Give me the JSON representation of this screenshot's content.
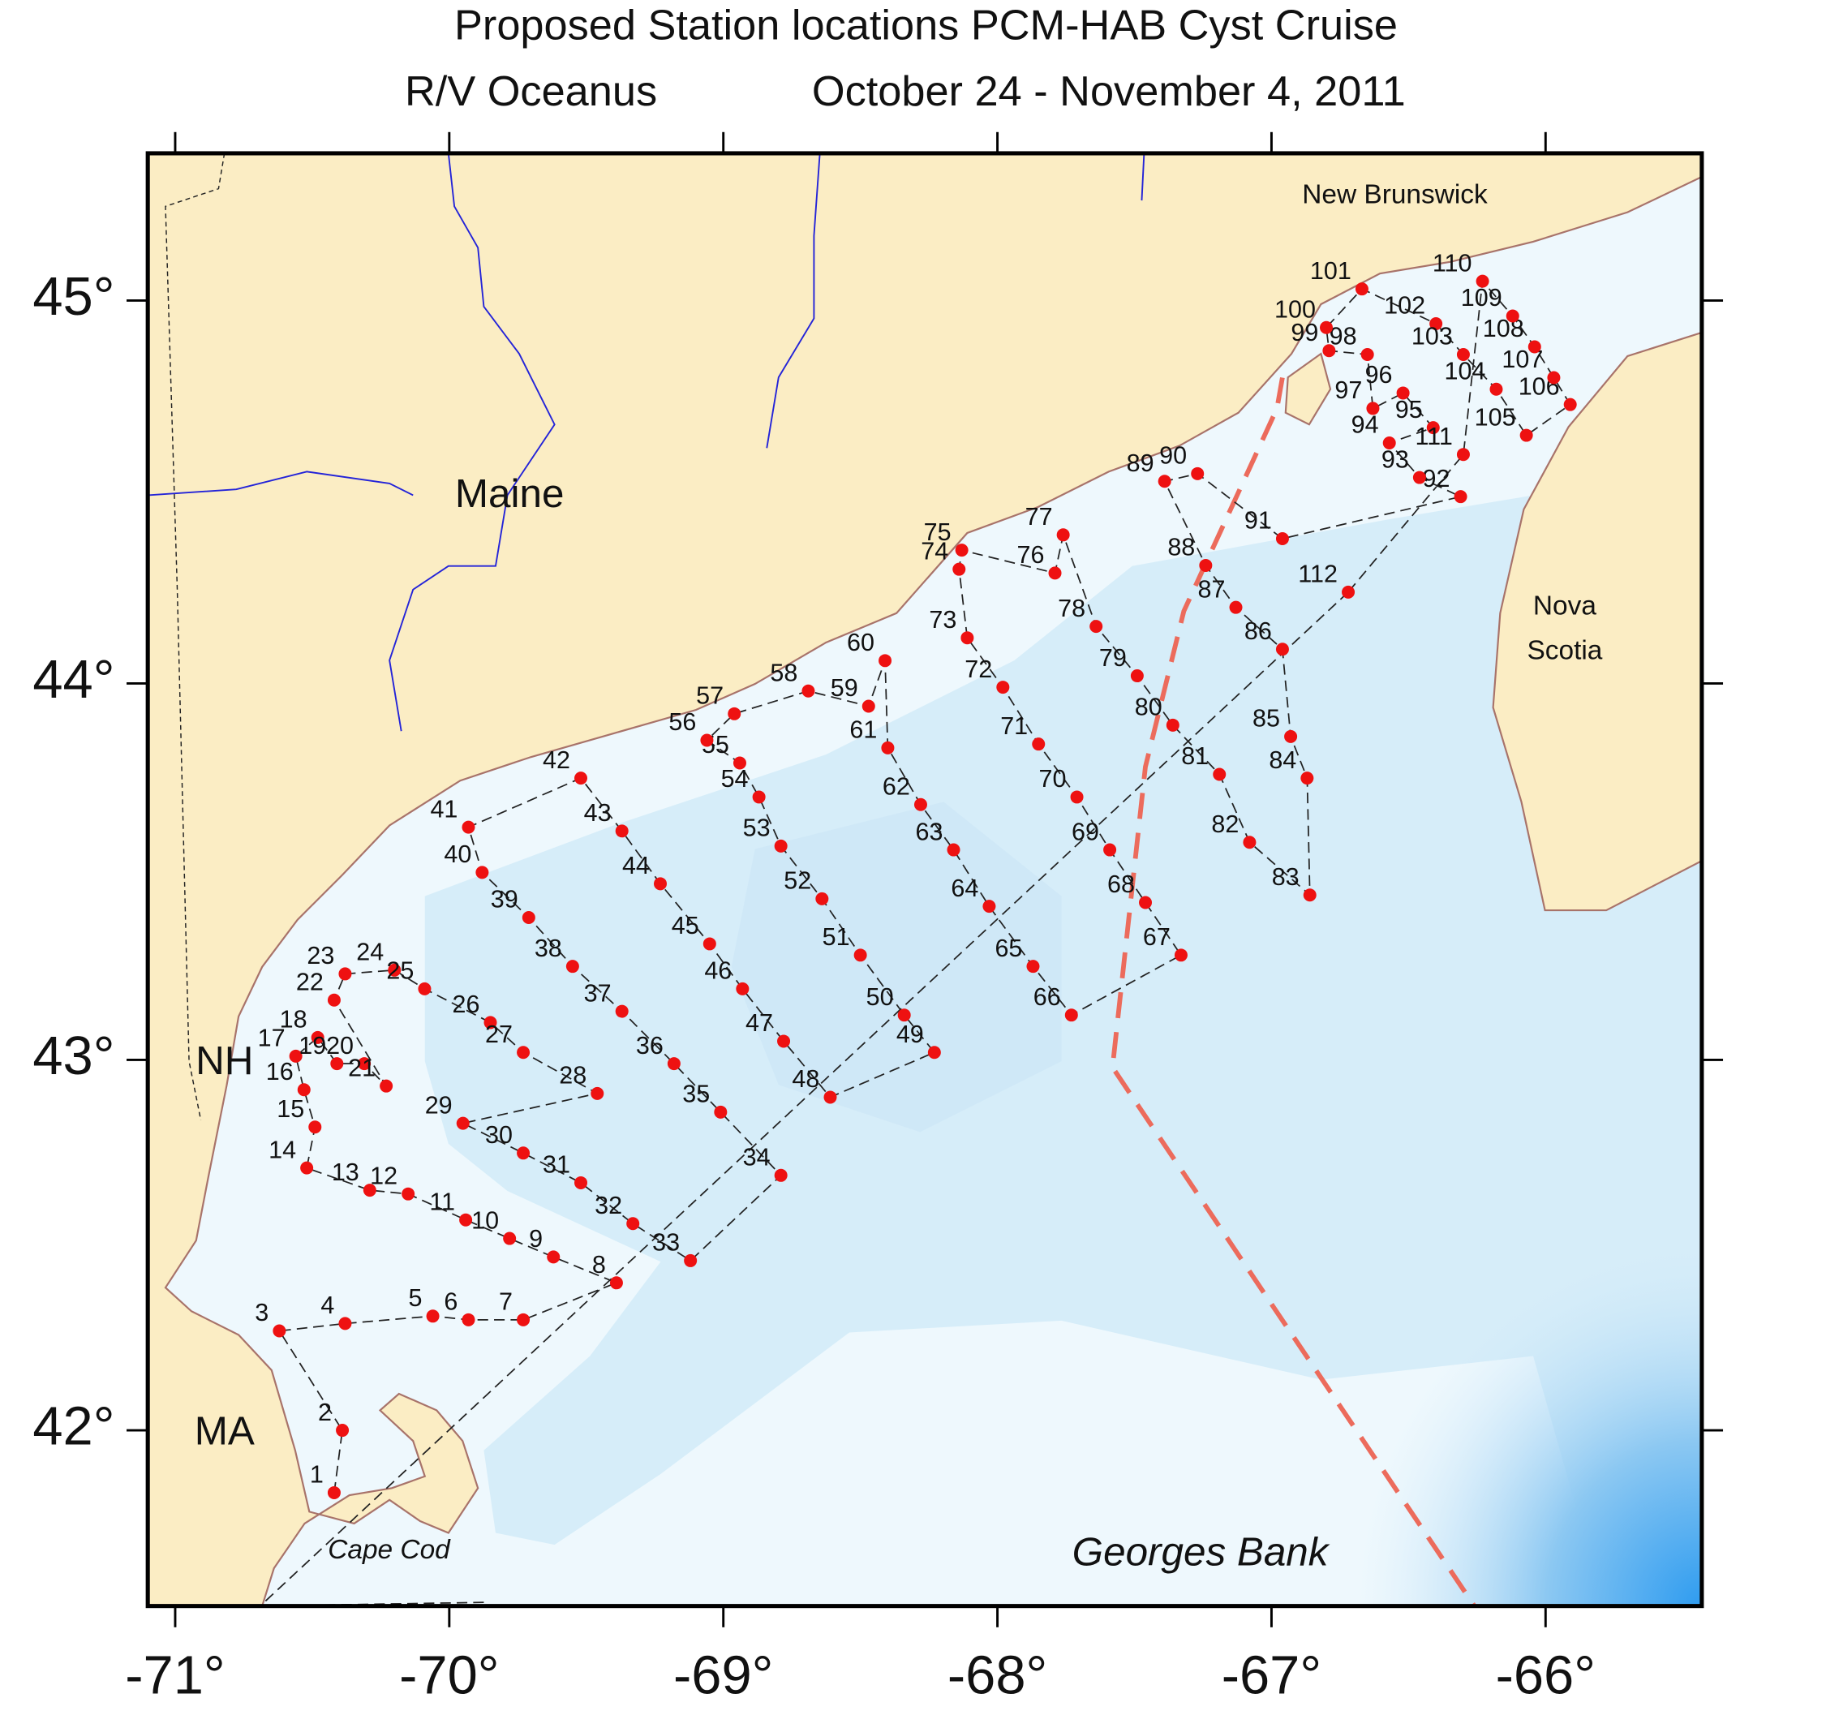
{
  "map": {
    "title": "Proposed Station locations  PCM-HAB Cyst Cruise",
    "subtitle": [
      "R/V Oceanus",
      "October 24 - November 4, 2011"
    ],
    "lonlim": [
      -71.1,
      -65.43
    ],
    "latlim": [
      41.52,
      45.38
    ],
    "lonticks": [
      {
        "value": -71,
        "label": "-71°"
      },
      {
        "value": -70,
        "label": "-70°"
      },
      {
        "value": -69,
        "label": "-69°"
      },
      {
        "value": -68,
        "label": "-68°"
      },
      {
        "value": -67,
        "label": "-67°"
      },
      {
        "value": -66,
        "label": "-66°"
      }
    ],
    "latticks": [
      {
        "value": 42,
        "label": "42°"
      },
      {
        "value": 43,
        "label": "43°"
      },
      {
        "value": 44,
        "label": "44°"
      },
      {
        "value": 45,
        "label": "45°"
      }
    ],
    "places": [
      {
        "label": "Maine",
        "lon": -69.78,
        "lat": 44.49
      },
      {
        "label": "New Brunswick",
        "lon": -66.55,
        "lat": 45.27
      },
      {
        "label": [
          "Nova",
          "Scotia"
        ],
        "lon": -65.93,
        "lat": 44.2
      },
      {
        "label": "NH",
        "lon": -70.82,
        "lat": 42.99
      },
      {
        "label": "MA",
        "lon": -70.82,
        "lat": 41.99
      },
      {
        "label": "Cape Cod",
        "lon": -70.22,
        "lat": 41.67
      },
      {
        "label": "Georges Bank",
        "lon": -67.26,
        "lat": 41.66
      }
    ],
    "boundary": {
      "lon": [
        -66.96,
        -66.98,
        -67.32,
        -67.46,
        -67.58,
        -66.26
      ],
      "lat": [
        44.8,
        44.72,
        44.19,
        43.78,
        42.98,
        41.52
      ]
    },
    "return_track": {
      "lon": [
        -66.72,
        -70.69,
        -69.87
      ],
      "lat": [
        44.24,
        41.52,
        41.53
      ]
    },
    "stations": [
      {
        "label": "1",
        "lon": -70.42,
        "lat": 41.83
      },
      {
        "label": "2",
        "lon": -70.39,
        "lat": 42.0
      },
      {
        "label": "3",
        "lon": -70.62,
        "lat": 42.27
      },
      {
        "label": "4",
        "lon": -70.38,
        "lat": 42.29
      },
      {
        "label": "5",
        "lon": -70.06,
        "lat": 42.31
      },
      {
        "label": "6",
        "lon": -69.93,
        "lat": 42.3
      },
      {
        "label": "7",
        "lon": -69.73,
        "lat": 42.3
      },
      {
        "label": "8",
        "lon": -69.39,
        "lat": 42.4
      },
      {
        "label": "9",
        "lon": -69.62,
        "lat": 42.47
      },
      {
        "label": "10",
        "lon": -69.78,
        "lat": 42.52
      },
      {
        "label": "11",
        "lon": -69.94,
        "lat": 42.57
      },
      {
        "label": "12",
        "lon": -70.15,
        "lat": 42.64
      },
      {
        "label": "13",
        "lon": -70.29,
        "lat": 42.65
      },
      {
        "label": "14",
        "lon": -70.52,
        "lat": 42.71
      },
      {
        "label": "15",
        "lon": -70.49,
        "lat": 42.82
      },
      {
        "label": "16",
        "lon": -70.53,
        "lat": 42.92
      },
      {
        "label": "17",
        "lon": -70.56,
        "lat": 43.01
      },
      {
        "label": "18",
        "lon": -70.48,
        "lat": 43.06
      },
      {
        "label": "19",
        "lon": -70.41,
        "lat": 42.99
      },
      {
        "label": "20",
        "lon": -70.31,
        "lat": 42.99
      },
      {
        "label": "21",
        "lon": -70.23,
        "lat": 42.93
      },
      {
        "label": "22",
        "lon": -70.42,
        "lat": 43.16
      },
      {
        "label": "23",
        "lon": -70.38,
        "lat": 43.23
      },
      {
        "label": "24",
        "lon": -70.2,
        "lat": 43.24
      },
      {
        "label": "25",
        "lon": -70.09,
        "lat": 43.19
      },
      {
        "label": "26",
        "lon": -69.85,
        "lat": 43.1
      },
      {
        "label": "27",
        "lon": -69.73,
        "lat": 43.02
      },
      {
        "label": "28",
        "lon": -69.46,
        "lat": 42.91
      },
      {
        "label": "29",
        "lon": -69.95,
        "lat": 42.83
      },
      {
        "label": "30",
        "lon": -69.73,
        "lat": 42.75
      },
      {
        "label": "31",
        "lon": -69.52,
        "lat": 42.67
      },
      {
        "label": "32",
        "lon": -69.33,
        "lat": 42.56
      },
      {
        "label": "33",
        "lon": -69.12,
        "lat": 42.46
      },
      {
        "label": "34",
        "lon": -68.79,
        "lat": 42.69
      },
      {
        "label": "35",
        "lon": -69.01,
        "lat": 42.86
      },
      {
        "label": "36",
        "lon": -69.18,
        "lat": 42.99
      },
      {
        "label": "37",
        "lon": -69.37,
        "lat": 43.13
      },
      {
        "label": "38",
        "lon": -69.55,
        "lat": 43.25
      },
      {
        "label": "39",
        "lon": -69.71,
        "lat": 43.38
      },
      {
        "label": "40",
        "lon": -69.88,
        "lat": 43.5
      },
      {
        "label": "41",
        "lon": -69.93,
        "lat": 43.62
      },
      {
        "label": "42",
        "lon": -69.52,
        "lat": 43.75
      },
      {
        "label": "43",
        "lon": -69.37,
        "lat": 43.61
      },
      {
        "label": "44",
        "lon": -69.23,
        "lat": 43.47
      },
      {
        "label": "45",
        "lon": -69.05,
        "lat": 43.31
      },
      {
        "label": "46",
        "lon": -68.93,
        "lat": 43.19
      },
      {
        "label": "47",
        "lon": -68.78,
        "lat": 43.05
      },
      {
        "label": "48",
        "lon": -68.61,
        "lat": 42.9
      },
      {
        "label": "49",
        "lon": -68.23,
        "lat": 43.02
      },
      {
        "label": "50",
        "lon": -68.34,
        "lat": 43.12
      },
      {
        "label": "51",
        "lon": -68.5,
        "lat": 43.28
      },
      {
        "label": "52",
        "lon": -68.64,
        "lat": 43.43
      },
      {
        "label": "53",
        "lon": -68.79,
        "lat": 43.57
      },
      {
        "label": "54",
        "lon": -68.87,
        "lat": 43.7
      },
      {
        "label": "55",
        "lon": -68.94,
        "lat": 43.79
      },
      {
        "label": "56",
        "lon": -69.06,
        "lat": 43.85
      },
      {
        "label": "57",
        "lon": -68.96,
        "lat": 43.92
      },
      {
        "label": "58",
        "lon": -68.69,
        "lat": 43.98
      },
      {
        "label": "59",
        "lon": -68.47,
        "lat": 43.94
      },
      {
        "label": "60",
        "lon": -68.41,
        "lat": 44.06
      },
      {
        "label": "61",
        "lon": -68.4,
        "lat": 43.83
      },
      {
        "label": "62",
        "lon": -68.28,
        "lat": 43.68
      },
      {
        "label": "63",
        "lon": -68.16,
        "lat": 43.56
      },
      {
        "label": "64",
        "lon": -68.03,
        "lat": 43.41
      },
      {
        "label": "65",
        "lon": -67.87,
        "lat": 43.25
      },
      {
        "label": "66",
        "lon": -67.73,
        "lat": 43.12
      },
      {
        "label": "67",
        "lon": -67.33,
        "lat": 43.28
      },
      {
        "label": "68",
        "lon": -67.46,
        "lat": 43.42
      },
      {
        "label": "69",
        "lon": -67.59,
        "lat": 43.56
      },
      {
        "label": "70",
        "lon": -67.71,
        "lat": 43.7
      },
      {
        "label": "71",
        "lon": -67.85,
        "lat": 43.84
      },
      {
        "label": "72",
        "lon": -67.98,
        "lat": 43.99
      },
      {
        "label": "73",
        "lon": -68.11,
        "lat": 44.12
      },
      {
        "label": "74",
        "lon": -68.14,
        "lat": 44.3
      },
      {
        "label": "75",
        "lon": -68.13,
        "lat": 44.35
      },
      {
        "label": "76",
        "lon": -67.79,
        "lat": 44.29
      },
      {
        "label": "77",
        "lon": -67.76,
        "lat": 44.39
      },
      {
        "label": "78",
        "lon": -67.64,
        "lat": 44.15
      },
      {
        "label": "79",
        "lon": -67.49,
        "lat": 44.02
      },
      {
        "label": "80",
        "lon": -67.36,
        "lat": 43.89
      },
      {
        "label": "81",
        "lon": -67.19,
        "lat": 43.76
      },
      {
        "label": "82",
        "lon": -67.08,
        "lat": 43.58
      },
      {
        "label": "83",
        "lon": -66.86,
        "lat": 43.44
      },
      {
        "label": "84",
        "lon": -66.87,
        "lat": 43.75
      },
      {
        "label": "85",
        "lon": -66.93,
        "lat": 43.86
      },
      {
        "label": "86",
        "lon": -66.96,
        "lat": 44.09
      },
      {
        "label": "87",
        "lon": -67.13,
        "lat": 44.2
      },
      {
        "label": "88",
        "lon": -67.24,
        "lat": 44.31
      },
      {
        "label": "89",
        "lon": -67.39,
        "lat": 44.53
      },
      {
        "label": "90",
        "lon": -67.27,
        "lat": 44.55
      },
      {
        "label": "91",
        "lon": -66.96,
        "lat": 44.38
      },
      {
        "label": "92",
        "lon": -66.31,
        "lat": 44.49
      },
      {
        "label": "93",
        "lon": -66.46,
        "lat": 44.54
      },
      {
        "label": "94",
        "lon": -66.57,
        "lat": 44.63
      },
      {
        "label": "95",
        "lon": -66.41,
        "lat": 44.67
      },
      {
        "label": "96",
        "lon": -66.52,
        "lat": 44.76
      },
      {
        "label": "97",
        "lon": -66.63,
        "lat": 44.72
      },
      {
        "label": "98",
        "lon": -66.65,
        "lat": 44.86
      },
      {
        "label": "99",
        "lon": -66.79,
        "lat": 44.87
      },
      {
        "label": "100",
        "lon": -66.8,
        "lat": 44.93
      },
      {
        "label": "101",
        "lon": -66.67,
        "lat": 45.03
      },
      {
        "label": "102",
        "lon": -66.4,
        "lat": 44.94
      },
      {
        "label": "103",
        "lon": -66.3,
        "lat": 44.86
      },
      {
        "label": "104",
        "lon": -66.18,
        "lat": 44.77
      },
      {
        "label": "105",
        "lon": -66.07,
        "lat": 44.65
      },
      {
        "label": "106",
        "lon": -65.91,
        "lat": 44.73
      },
      {
        "label": "107",
        "lon": -65.97,
        "lat": 44.8
      },
      {
        "label": "108",
        "lon": -66.04,
        "lat": 44.88
      },
      {
        "label": "109",
        "lon": -66.12,
        "lat": 44.96
      },
      {
        "label": "110",
        "lon": -66.23,
        "lat": 45.05
      },
      {
        "label": "111",
        "lon": -66.3,
        "lat": 44.6
      },
      {
        "label": "112",
        "lon": -66.72,
        "lat": 44.24
      }
    ]
  }
}
